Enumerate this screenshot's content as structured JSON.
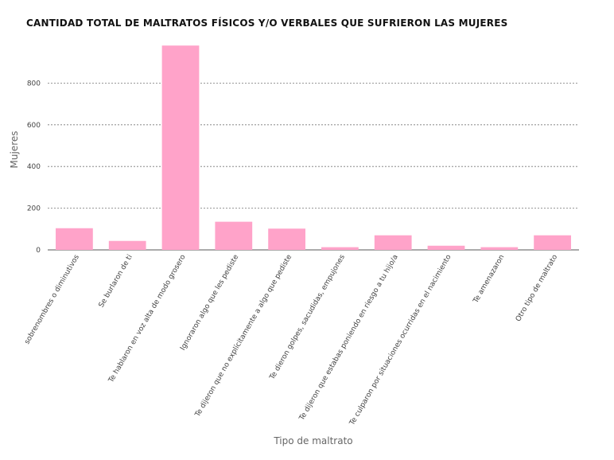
{
  "chart_data": {
    "type": "bar",
    "title": "CANTIDAD TOTAL DE MALTRATOS FÍSICOS Y/O VERBALES QUE SUFRIERON LAS MUJERES",
    "xlabel": "Tipo de maltrato",
    "ylabel": "Mujeres",
    "categories": [
      "sobrenombres o diminutivos",
      "Se burlaron de ti",
      "Te hablaron en voz alta de modo grosero",
      "Ignoraron algo que les pediste",
      "Te dijeron que no explícitamente a algo que pediste",
      "Te dieron golpes, sacudidas, empujones",
      "Te dijeron que estabas poniendo en riesgo a tu hijo/a",
      "Te culparon por situaciones ocurridas en el nacimiento",
      "Te amenazaron",
      "Otro tipo de maltrato"
    ],
    "values": [
      104,
      43,
      980,
      135,
      102,
      13,
      70,
      20,
      13,
      70
    ],
    "yticks": [
      0,
      200,
      400,
      600,
      800
    ],
    "ylim": [
      0,
      1000
    ],
    "grid": true,
    "bar_color": "#ffa3c9"
  }
}
